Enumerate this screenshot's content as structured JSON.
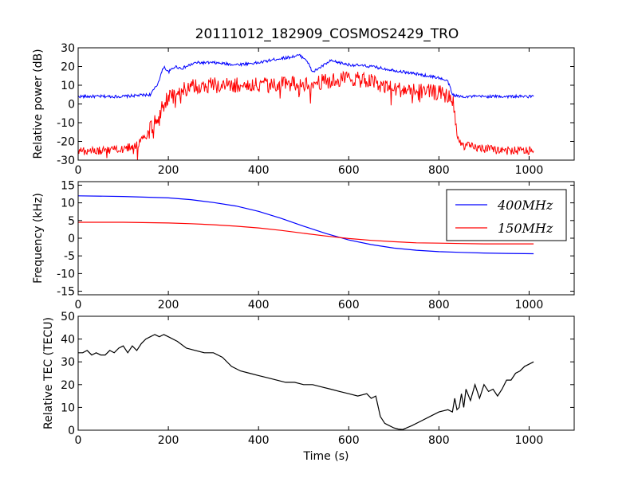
{
  "figure": {
    "title": "20111012_182909_COSMOS2429_TRO"
  },
  "chart_data": [
    {
      "type": "line",
      "ylabel": "Relative power (dB)",
      "xlabel": "",
      "xlim": [
        0,
        1100
      ],
      "ylim": [
        -30,
        30
      ],
      "xticks": [
        0,
        200,
        400,
        600,
        800,
        1000
      ],
      "yticks": [
        -30,
        -20,
        -10,
        0,
        10,
        20,
        30
      ],
      "noise_shown": true,
      "series": [
        {
          "color": "#0000ff",
          "x": [
            0,
            100,
            160,
            175,
            190,
            200,
            215,
            230,
            260,
            300,
            350,
            400,
            440,
            470,
            490,
            505,
            520,
            540,
            560,
            580,
            600,
            650,
            700,
            750,
            800,
            820,
            830,
            845,
            870,
            900,
            950,
            1010
          ],
          "y": [
            4,
            4,
            5,
            10,
            20,
            17,
            20,
            19,
            22,
            22,
            21,
            22,
            24,
            25,
            26,
            24,
            17,
            20,
            23,
            22,
            21,
            20,
            18,
            16,
            14,
            12,
            5,
            4,
            4,
            4,
            4,
            4
          ]
        },
        {
          "color": "#ff0000",
          "x": [
            0,
            50,
            100,
            130,
            150,
            170,
            180,
            190,
            200,
            220,
            250,
            300,
            400,
            500,
            550,
            580,
            600,
            620,
            650,
            700,
            750,
            800,
            830,
            835,
            840,
            850,
            900,
            950,
            1010
          ],
          "y": [
            -25,
            -25,
            -24,
            -22,
            -17,
            -10,
            -5,
            0,
            3,
            7,
            9,
            10,
            10,
            11,
            12,
            13,
            14,
            13,
            12,
            8,
            7,
            6,
            3,
            -5,
            -18,
            -22,
            -24,
            -25,
            -25
          ]
        }
      ]
    },
    {
      "type": "line",
      "ylabel": "Frequency (kHz)",
      "xlabel": "",
      "xlim": [
        0,
        1100
      ],
      "ylim": [
        -16,
        16
      ],
      "xticks": [
        0,
        200,
        400,
        600,
        800,
        1000
      ],
      "yticks": [
        -15,
        -10,
        -5,
        0,
        5,
        10,
        15
      ],
      "legend": "upper right",
      "series": [
        {
          "name": "400MHz",
          "color": "#0000ff",
          "x": [
            0,
            100,
            200,
            250,
            300,
            350,
            400,
            450,
            500,
            550,
            600,
            650,
            700,
            750,
            800,
            850,
            900,
            950,
            1010
          ],
          "y": [
            12,
            11.8,
            11.4,
            10.9,
            10.1,
            9.1,
            7.6,
            5.6,
            3.4,
            1.3,
            -0.5,
            -1.8,
            -2.8,
            -3.4,
            -3.8,
            -4.0,
            -4.2,
            -4.3,
            -4.4
          ]
        },
        {
          "name": "150MHz",
          "color": "#ff0000",
          "x": [
            0,
            100,
            200,
            250,
            300,
            350,
            400,
            450,
            500,
            550,
            600,
            650,
            700,
            750,
            800,
            850,
            900,
            950,
            1010
          ],
          "y": [
            4.5,
            4.5,
            4.3,
            4.1,
            3.8,
            3.4,
            2.9,
            2.2,
            1.4,
            0.6,
            -0.1,
            -0.6,
            -1.0,
            -1.3,
            -1.4,
            -1.5,
            -1.6,
            -1.6,
            -1.6
          ]
        }
      ]
    },
    {
      "type": "line",
      "ylabel": "Relative TEC (TECU)",
      "xlabel": "Time (s)",
      "xlim": [
        0,
        1100
      ],
      "ylim": [
        0,
        50
      ],
      "xticks": [
        0,
        200,
        400,
        600,
        800,
        1000
      ],
      "yticks": [
        0,
        10,
        20,
        30,
        40,
        50
      ],
      "series": [
        {
          "color": "#000000",
          "x": [
            0,
            10,
            20,
            30,
            40,
            50,
            60,
            70,
            80,
            90,
            100,
            110,
            120,
            130,
            140,
            150,
            160,
            170,
            180,
            190,
            200,
            220,
            240,
            260,
            280,
            300,
            320,
            340,
            360,
            380,
            400,
            420,
            440,
            460,
            480,
            500,
            520,
            540,
            560,
            580,
            600,
            620,
            640,
            650,
            660,
            670,
            680,
            690,
            700,
            710,
            720,
            740,
            760,
            780,
            800,
            820,
            830,
            835,
            840,
            845,
            850,
            855,
            860,
            870,
            880,
            890,
            900,
            910,
            920,
            930,
            940,
            950,
            960,
            970,
            980,
            990,
            1000,
            1010
          ],
          "y": [
            34,
            34,
            35,
            33,
            34,
            33,
            33,
            35,
            34,
            36,
            37,
            34,
            37,
            35,
            38,
            40,
            41,
            42,
            41,
            42,
            41,
            39,
            36,
            35,
            34,
            34,
            32,
            28,
            26,
            25,
            24,
            23,
            22,
            21,
            21,
            20,
            20,
            19,
            18,
            17,
            16,
            15,
            16,
            14,
            15,
            6,
            3,
            2,
            1,
            0.5,
            0.3,
            2,
            4,
            6,
            8,
            9,
            8,
            14,
            9,
            10,
            16,
            10,
            18,
            13,
            20,
            14,
            20,
            17,
            18,
            15,
            18,
            22,
            22,
            25,
            26,
            28,
            29,
            30
          ]
        }
      ]
    }
  ]
}
